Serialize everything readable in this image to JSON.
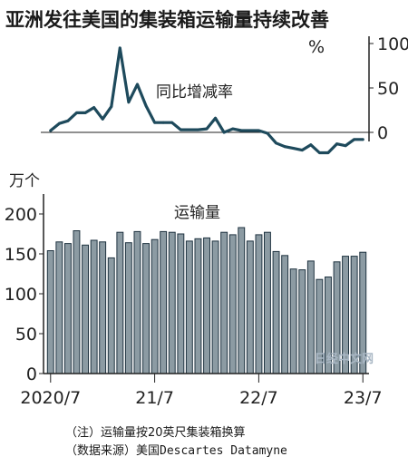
{
  "title": "亚洲发往美国的集装箱运输量持续改善",
  "top_chart": {
    "unit": "%",
    "label": "同比增减率",
    "y_ticks": [
      "100",
      "50",
      "0"
    ]
  },
  "bottom_chart": {
    "unit": "万个",
    "label": "运输量",
    "y_ticks": [
      "200",
      "150",
      "100",
      "50",
      "0"
    ]
  },
  "x_ticks": [
    "2020/7",
    "21/7",
    "22/7",
    "23/7"
  ],
  "watermark": "日经中文网",
  "notes": [
    "（注）运输量按20英尺集装箱换算",
    "（数据来源）美国Descartes Datamyne"
  ],
  "colors": {
    "bar": "#8c9ba3",
    "bar_edge": "#1f3340",
    "line": "#1e4a5c",
    "axis": "#222222"
  },
  "chart_data": [
    {
      "type": "line",
      "title": "同比增减率",
      "ylabel": "%",
      "ylim": [
        -15,
        100
      ],
      "x": [
        "2020/7",
        "2020/8",
        "2020/9",
        "2020/10",
        "2020/11",
        "2020/12",
        "2021/1",
        "2021/2",
        "2021/3",
        "2021/4",
        "2021/5",
        "2021/6",
        "2021/7",
        "2021/8",
        "2021/9",
        "2021/10",
        "2021/11",
        "2021/12",
        "2022/1",
        "2022/2",
        "2022/3",
        "2022/4",
        "2022/5",
        "2022/6",
        "2022/7",
        "2022/8",
        "2022/9",
        "2022/10",
        "2022/11",
        "2022/12",
        "2023/1",
        "2023/2",
        "2023/3",
        "2023/4",
        "2023/5",
        "2023/6",
        "2023/7"
      ],
      "values": [
        2,
        10,
        13,
        22,
        22,
        28,
        15,
        29,
        95,
        34,
        54,
        30,
        11,
        11,
        11,
        3,
        3,
        3,
        4,
        16,
        0,
        4,
        2,
        2,
        2,
        -1,
        -12,
        -16,
        -18,
        -20,
        -14,
        -23,
        -23,
        -13,
        -15,
        -8,
        -8
      ]
    },
    {
      "type": "bar",
      "title": "运输量",
      "ylabel": "万个",
      "ylim": [
        0,
        200
      ],
      "categories": [
        "2020/7",
        "2020/8",
        "2020/9",
        "2020/10",
        "2020/11",
        "2020/12",
        "2021/1",
        "2021/2",
        "2021/3",
        "2021/4",
        "2021/5",
        "2021/6",
        "2021/7",
        "2021/8",
        "2021/9",
        "2021/10",
        "2021/11",
        "2021/12",
        "2022/1",
        "2022/2",
        "2022/3",
        "2022/4",
        "2022/5",
        "2022/6",
        "2022/7",
        "2022/8",
        "2022/9",
        "2022/10",
        "2022/11",
        "2022/12",
        "2023/1",
        "2023/2",
        "2023/3",
        "2023/4",
        "2023/5",
        "2023/6",
        "2023/7"
      ],
      "values": [
        154,
        165,
        163,
        179,
        161,
        167,
        165,
        145,
        177,
        164,
        178,
        163,
        168,
        178,
        177,
        175,
        166,
        169,
        170,
        166,
        177,
        174,
        183,
        166,
        174,
        177,
        153,
        148,
        131,
        130,
        141,
        118,
        121,
        140,
        147,
        147,
        152
      ]
    }
  ]
}
